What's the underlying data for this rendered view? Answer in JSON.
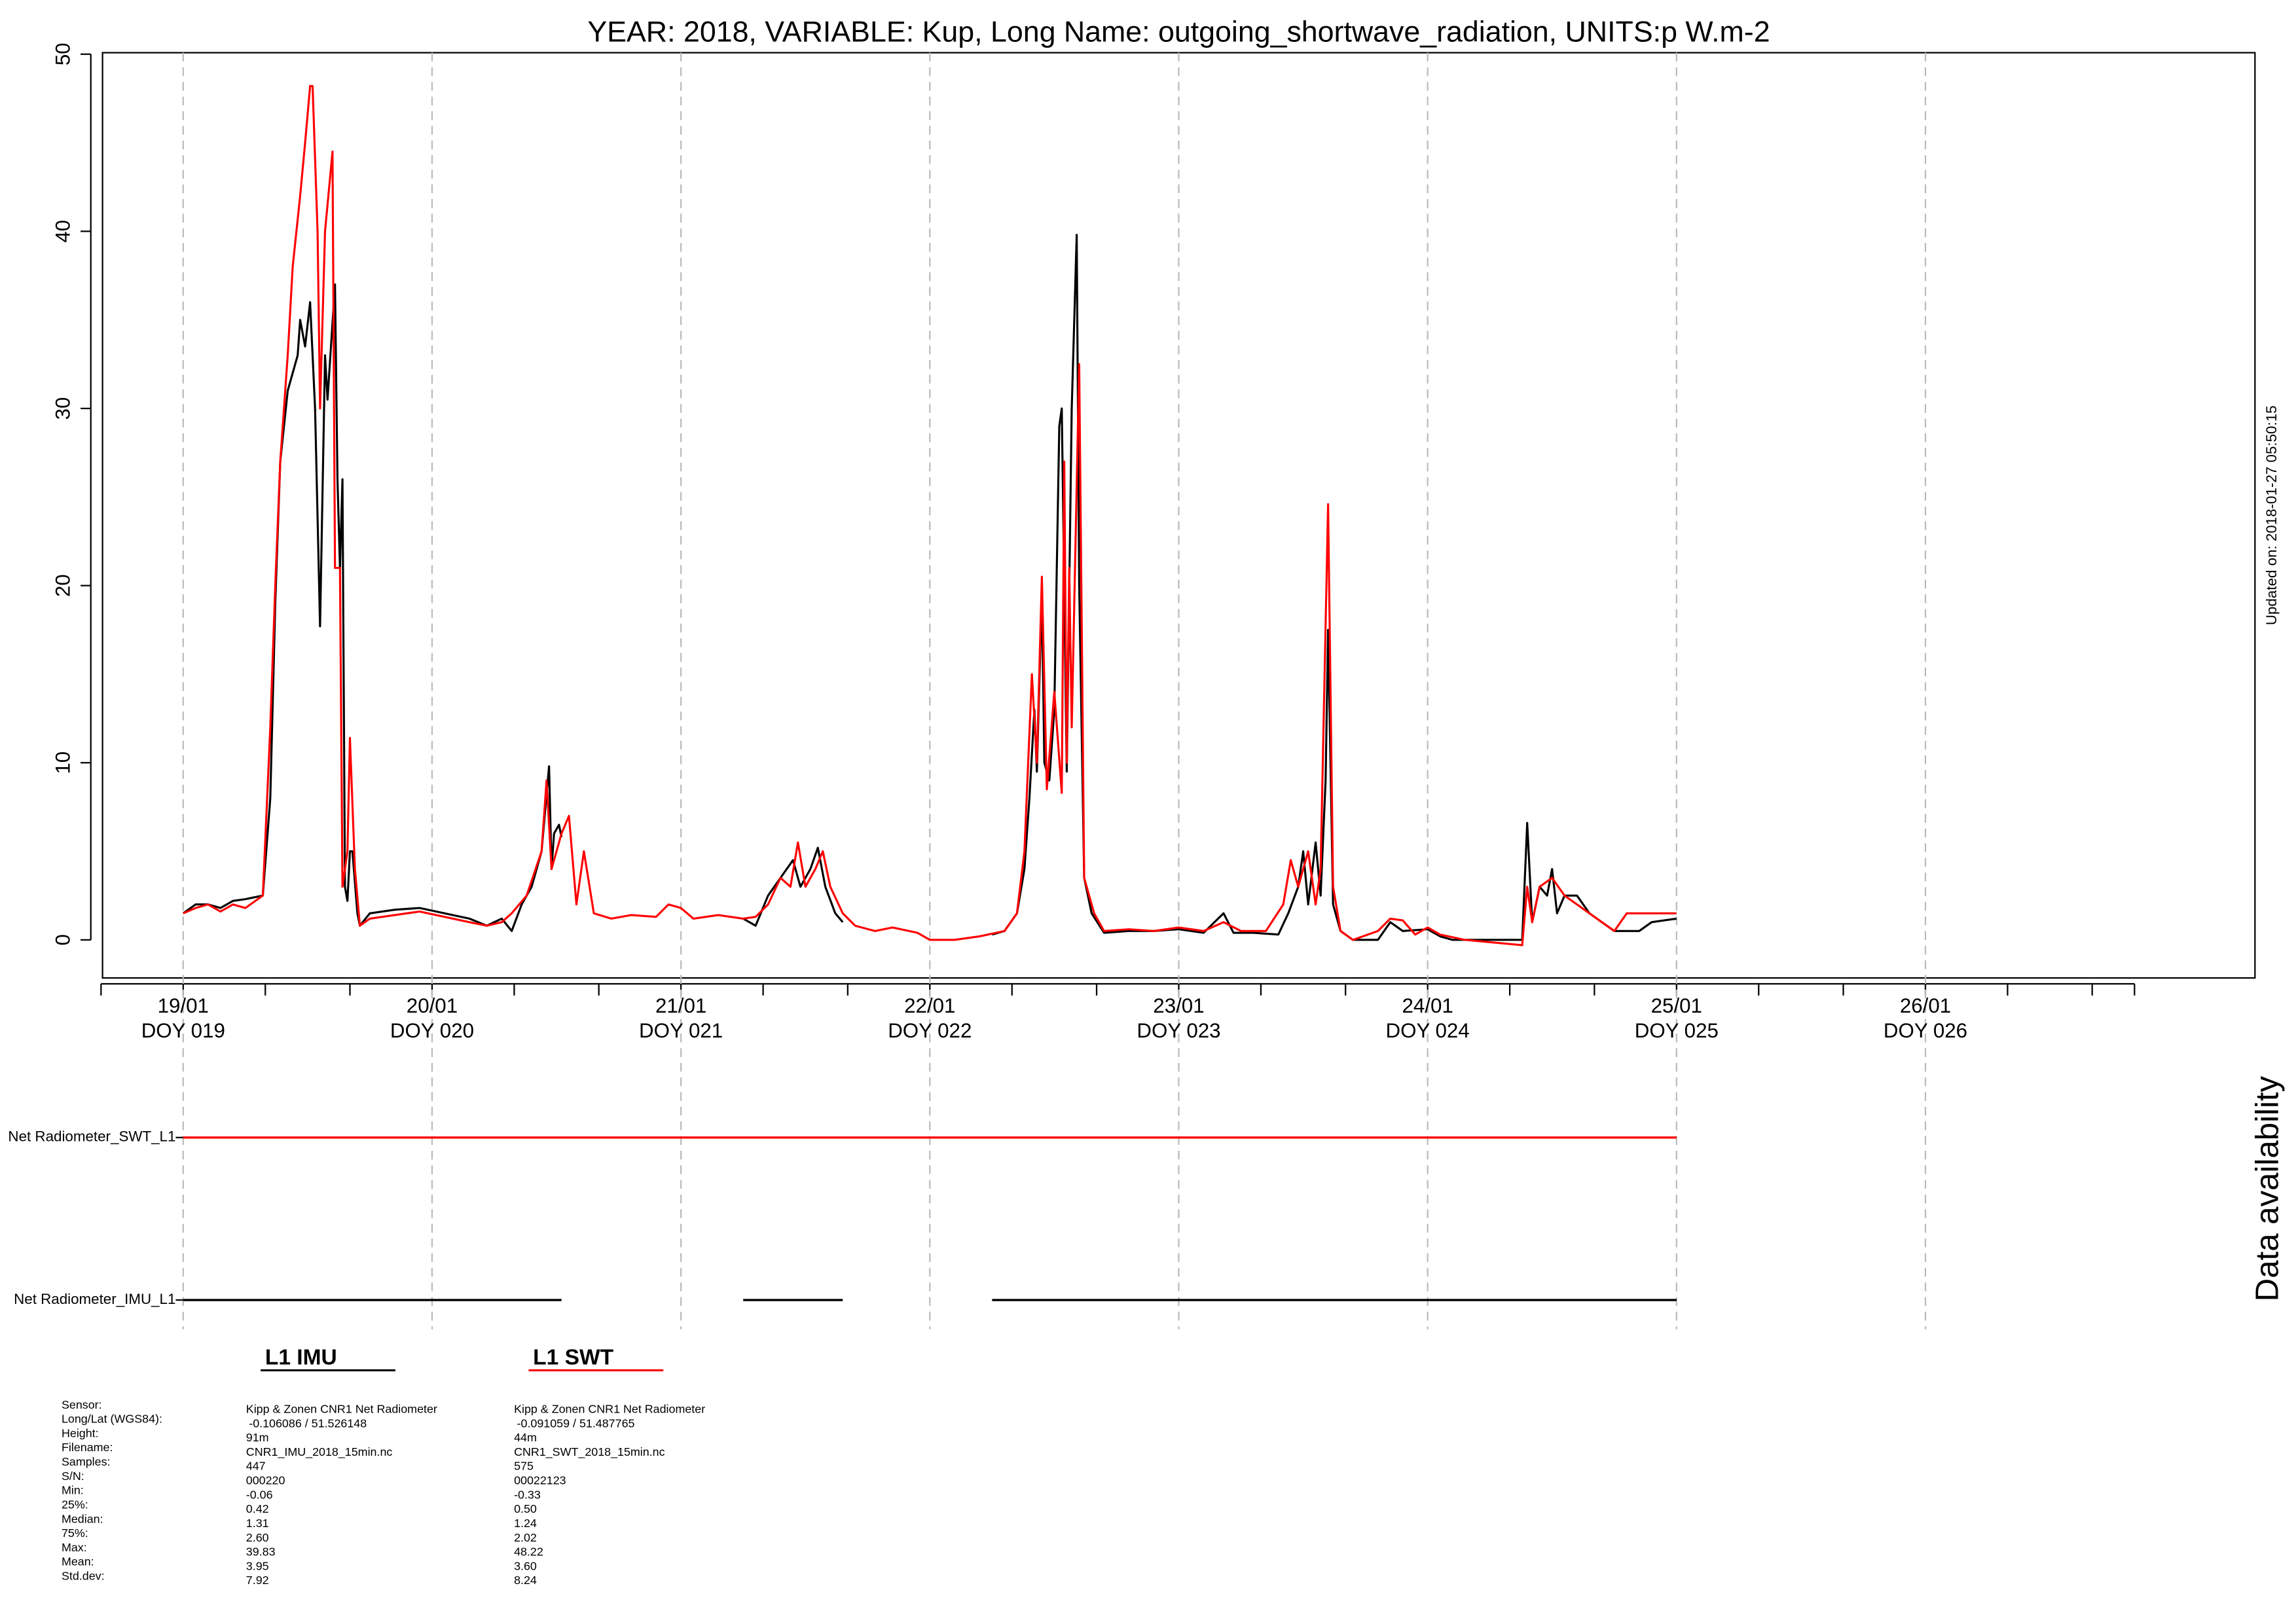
{
  "chart_data": {
    "type": "line",
    "title": "YEAR: 2018, VARIABLE: Kup, Long Name: outgoing_shortwave_radiation, UNITS:p W.m-2",
    "updated": "Updated on: 2018-01-27 05:50:15",
    "availability_title": "Data availability",
    "xlim": [
      18.676,
      27.324
    ],
    "ylim": [
      -2.149,
      50.083
    ],
    "yticks": [
      0,
      10,
      20,
      30,
      40,
      50
    ],
    "xticks": [
      {
        "value": 19,
        "label": "19/01"
      },
      {
        "value": 20,
        "label": "20/01"
      },
      {
        "value": 21,
        "label": "21/01"
      },
      {
        "value": 22,
        "label": "22/01"
      },
      {
        "value": 23,
        "label": "23/01"
      },
      {
        "value": 24,
        "label": "24/01"
      },
      {
        "value": 25,
        "label": "25/01"
      },
      {
        "value": 26,
        "label": "26/01"
      }
    ],
    "xtick_sublabels": [
      "DOY 019",
      "DOY 020",
      "DOY 021",
      "DOY 022",
      "DOY 023",
      "DOY 024",
      "DOY 025",
      "DOY 026"
    ],
    "xminorticks": [
      18.67,
      19.33,
      19.67,
      20.33,
      20.67,
      21.33,
      21.67,
      22.33,
      22.67,
      23.33,
      23.67,
      24.33,
      24.67,
      25.33,
      25.67,
      26.33,
      26.67,
      26.84
    ],
    "grid": true,
    "series": [
      {
        "name": "L1 IMU",
        "color": "#000000",
        "x": [
          19.0,
          19.05,
          19.1,
          19.15,
          19.2,
          19.25,
          19.32,
          19.35,
          19.37,
          19.39,
          19.42,
          19.46,
          19.47,
          19.49,
          19.51,
          19.53,
          19.55,
          19.57,
          19.58,
          19.61,
          19.62,
          19.63,
          19.64,
          19.65,
          19.66,
          19.67,
          19.68,
          19.7,
          19.71,
          19.75,
          19.85,
          19.95,
          20.05,
          20.15,
          20.22,
          20.28,
          20.32,
          20.36,
          20.4,
          20.44,
          20.47,
          20.48,
          20.49,
          20.51,
          20.52,
          null,
          21.25,
          21.3,
          21.35,
          21.4,
          21.45,
          21.48,
          21.52,
          21.55,
          21.58,
          21.62,
          21.65,
          null,
          22.25,
          22.3,
          22.35,
          22.38,
          22.4,
          22.42,
          22.43,
          22.45,
          22.46,
          22.48,
          22.5,
          22.52,
          22.53,
          22.55,
          22.57,
          22.59,
          22.6,
          22.62,
          22.65,
          22.7,
          22.8,
          22.9,
          23.0,
          23.1,
          23.18,
          23.22,
          23.3,
          23.4,
          23.44,
          23.48,
          23.5,
          23.52,
          23.55,
          23.57,
          23.59,
          23.6,
          23.62,
          23.65,
          23.7,
          23.8,
          23.85,
          23.9,
          24.0,
          24.05,
          24.1,
          24.2,
          24.38,
          24.4,
          24.42,
          24.45,
          24.48,
          24.5,
          24.52,
          24.55,
          24.6,
          24.65,
          24.7,
          24.75,
          24.85,
          24.9,
          25.0
        ],
        "values": [
          1.5,
          2.0,
          2.0,
          1.8,
          2.2,
          2.3,
          2.5,
          8,
          19,
          27,
          31,
          33,
          35,
          33.5,
          36,
          30,
          17.7,
          33,
          30.5,
          37,
          26,
          21,
          26,
          3,
          2.2,
          5,
          5,
          1.5,
          0.8,
          1.5,
          1.7,
          1.8,
          1.5,
          1.2,
          0.8,
          1.2,
          0.5,
          2,
          3,
          5,
          9.8,
          4,
          6,
          6.5,
          5.8,
          null,
          1.2,
          0.8,
          2.5,
          3.5,
          4.5,
          3,
          4,
          5.2,
          3,
          1.5,
          1.0,
          null,
          0.3,
          0.5,
          1.5,
          4,
          8,
          13,
          9.5,
          19.5,
          10,
          9,
          13,
          29,
          30,
          9.5,
          30,
          39.8,
          20,
          3.5,
          1.5,
          0.4,
          0.5,
          0.5,
          0.6,
          0.4,
          1.5,
          0.4,
          0.4,
          0.3,
          1.5,
          3,
          5,
          2,
          5.5,
          2.5,
          9,
          17.5,
          2,
          0.5,
          0,
          0,
          1,
          0.5,
          0.6,
          0.2,
          0,
          0,
          0,
          6.6,
          1,
          3,
          2.5,
          4,
          1.5,
          2.5,
          2.5,
          1.5,
          1,
          0.5,
          0.5,
          1,
          1.2
        ]
      },
      {
        "name": "L1 SWT",
        "color": "#ff0000",
        "x": [
          19.0,
          19.05,
          19.1,
          19.15,
          19.2,
          19.25,
          19.32,
          19.35,
          19.37,
          19.39,
          19.42,
          19.44,
          19.47,
          19.49,
          19.51,
          19.52,
          19.54,
          19.55,
          19.57,
          19.6,
          19.61,
          19.63,
          19.64,
          19.66,
          19.67,
          19.69,
          19.71,
          19.75,
          19.85,
          19.95,
          20.05,
          20.15,
          20.22,
          20.28,
          20.32,
          20.38,
          20.44,
          20.46,
          20.48,
          20.52,
          20.55,
          20.58,
          20.61,
          20.65,
          20.72,
          20.8,
          20.9,
          20.95,
          21.0,
          21.05,
          21.15,
          21.25,
          21.3,
          21.35,
          21.4,
          21.44,
          21.47,
          21.5,
          21.54,
          21.57,
          21.6,
          21.65,
          21.7,
          21.78,
          21.85,
          21.95,
          22.0,
          22.1,
          22.2,
          22.3,
          22.35,
          22.38,
          22.41,
          22.43,
          22.45,
          22.47,
          22.5,
          22.53,
          22.54,
          22.55,
          22.56,
          22.57,
          22.6,
          22.62,
          22.66,
          22.7,
          22.8,
          22.9,
          23.0,
          23.1,
          23.18,
          23.25,
          23.35,
          23.42,
          23.45,
          23.48,
          23.52,
          23.55,
          23.57,
          23.6,
          23.62,
          23.65,
          23.7,
          23.8,
          23.85,
          23.9,
          23.95,
          24.0,
          24.05,
          24.15,
          24.38,
          24.4,
          24.42,
          24.45,
          24.5,
          24.55,
          24.6,
          24.7,
          24.75,
          24.8,
          24.9,
          25.0
        ],
        "values": [
          1.5,
          1.8,
          2.0,
          1.6,
          2.0,
          1.8,
          2.5,
          12,
          20,
          27,
          33,
          38,
          42,
          45,
          48.2,
          48.2,
          40,
          30,
          40,
          44.5,
          21,
          21,
          3,
          5,
          11.4,
          4,
          0.8,
          1.2,
          1.4,
          1.6,
          1.3,
          1.0,
          0.8,
          1.0,
          1.5,
          2.5,
          5,
          9,
          4,
          6,
          7,
          2,
          5,
          1.5,
          1.2,
          1.4,
          1.3,
          2.0,
          1.8,
          1.2,
          1.4,
          1.2,
          1.3,
          2,
          3.5,
          3,
          5.5,
          3,
          4,
          5,
          3,
          1.5,
          0.8,
          0.5,
          0.7,
          0.4,
          0,
          0,
          0.2,
          0.5,
          1.5,
          5,
          15,
          10,
          20.5,
          8.5,
          14,
          8.3,
          27,
          10,
          21,
          12,
          32.5,
          3.5,
          1.5,
          0.5,
          0.6,
          0.5,
          0.7,
          0.5,
          1.0,
          0.5,
          0.5,
          2,
          4.5,
          3,
          5,
          2,
          4,
          24.6,
          3,
          0.5,
          0,
          0.5,
          1.2,
          1.1,
          0.3,
          0.7,
          0.3,
          0,
          -0.3,
          3,
          1,
          3,
          3.5,
          2.5,
          2,
          1,
          0.5,
          1.5,
          1.5,
          1.5
        ]
      }
    ],
    "availability": [
      {
        "name": "Net Radiometer_SWT_L1",
        "color": "#ff0000",
        "segments": [
          [
            19,
            25
          ]
        ]
      },
      {
        "name": "Net Radiometer_IMU_L1",
        "color": "#000000",
        "segments": [
          [
            19,
            20.52
          ],
          [
            21.25,
            21.65
          ],
          [
            22.25,
            25
          ]
        ]
      }
    ],
    "stats": {
      "labels": [
        "Sensor:",
        "Long/Lat (WGS84):",
        "Height:",
        "Filename:",
        "Samples:",
        "S/N:",
        "Min:",
        "25%:",
        "Median:",
        "75%:",
        "Max:",
        "Mean:",
        "Std.dev:"
      ],
      "columns": [
        [
          "Kipp & Zonen CNR1 Net Radiometer",
          "-0.106086 / 51.526148",
          "91m",
          "CNR1_IMU_2018_15min.nc",
          "447",
          "000220",
          "-0.06",
          "0.42",
          "1.31",
          "2.60",
          "39.83",
          "3.95",
          "7.92"
        ],
        [
          "Kipp & Zonen CNR1 Net Radiometer",
          "-0.091059 / 51.487765",
          "44m",
          "CNR1_SWT_2018_15min.nc",
          "575",
          "00022123",
          "-0.33",
          "0.50",
          "1.24",
          "2.02",
          "48.22",
          "3.60",
          "8.24"
        ]
      ]
    }
  }
}
